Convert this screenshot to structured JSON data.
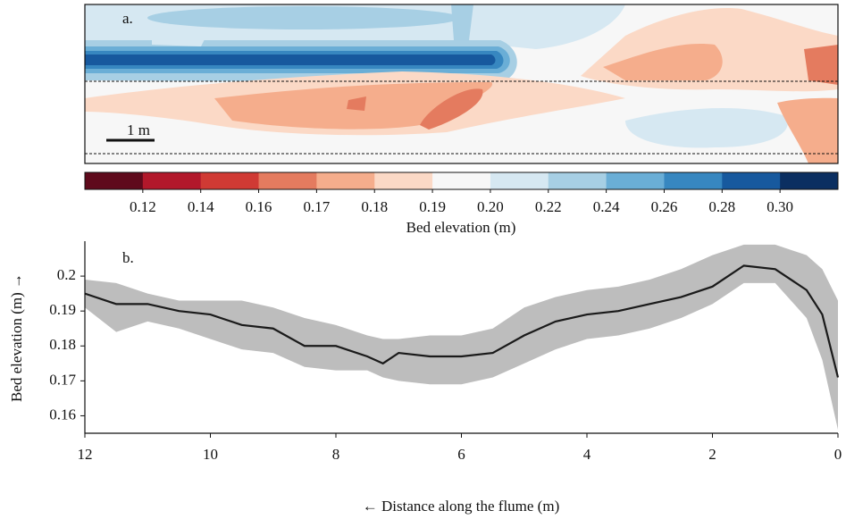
{
  "chart_data": [
    {
      "type": "map",
      "label": "a.",
      "scale_label": "1 m",
      "colorbar": {
        "label": "Bed elevation (m)",
        "colors": [
          "#5f0a1c",
          "#b2182b",
          "#d03a34",
          "#e47b5f",
          "#f5ad8c",
          "#fbd9c6",
          "#f7f7f7",
          "#d6e8f2",
          "#a7cfe4",
          "#6aaed6",
          "#3787c0",
          "#17599e",
          "#0b2f61"
        ],
        "ticks": [
          0.12,
          0.14,
          0.16,
          0.17,
          0.18,
          0.19,
          {
            "value": 0.2,
            "label": "0.20"
          },
          0.22,
          0.24,
          0.26,
          0.28,
          {
            "value": 0.3,
            "label": "0.30"
          }
        ]
      }
    },
    {
      "type": "line",
      "label": "b.",
      "xlabel": "← Distance along the flume (m)",
      "ylabel": "Bed elevation (m) →",
      "x": [
        12,
        11.5,
        11,
        10.5,
        10,
        9.5,
        9,
        8.5,
        8,
        7.5,
        7.25,
        7,
        6.5,
        6,
        5.5,
        5,
        4.5,
        4,
        3.5,
        3,
        2.5,
        2,
        1.5,
        1,
        0.5,
        0.25,
        0
      ],
      "values": [
        0.195,
        0.192,
        0.192,
        0.19,
        0.189,
        0.186,
        0.185,
        0.18,
        0.18,
        0.177,
        0.175,
        0.178,
        0.177,
        0.177,
        0.178,
        0.183,
        0.187,
        0.189,
        0.19,
        0.192,
        0.194,
        0.197,
        0.203,
        0.202,
        0.196,
        0.189,
        0.171
      ],
      "upper": [
        0.199,
        0.198,
        0.195,
        0.193,
        0.193,
        0.193,
        0.191,
        0.188,
        0.186,
        0.183,
        0.182,
        0.182,
        0.183,
        0.183,
        0.185,
        0.191,
        0.194,
        0.196,
        0.197,
        0.199,
        0.202,
        0.206,
        0.209,
        0.209,
        0.206,
        0.202,
        0.193
      ],
      "lower": [
        0.191,
        0.184,
        0.187,
        0.185,
        0.182,
        0.179,
        0.178,
        0.174,
        0.173,
        0.173,
        0.171,
        0.17,
        0.169,
        0.169,
        0.171,
        0.175,
        0.179,
        0.182,
        0.183,
        0.185,
        0.188,
        0.192,
        0.198,
        0.198,
        0.188,
        0.176,
        0.156
      ],
      "color": "#1a1a1a",
      "band_color": "#bdbdbd",
      "xlim": [
        12,
        0
      ],
      "ylim": [
        0.155,
        0.21
      ],
      "xticks": [
        12,
        10,
        8,
        6,
        4,
        2,
        0
      ],
      "yticks": [
        0.2,
        0.19,
        0.18,
        0.17,
        0.16
      ]
    }
  ]
}
